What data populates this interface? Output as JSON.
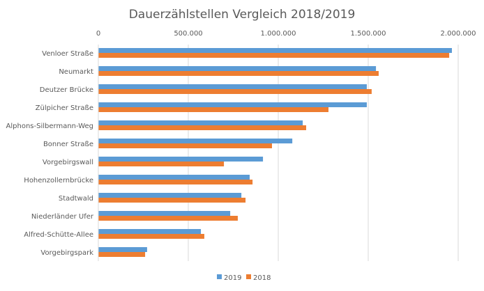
{
  "chart_data": {
    "type": "bar",
    "orientation": "horizontal",
    "title": "Dauerzählstellen Vergleich 2018/2019",
    "xlabel": "",
    "ylabel": "",
    "xlim": [
      0,
      2000000
    ],
    "ticks": [
      0,
      500000,
      1000000,
      1500000,
      2000000
    ],
    "tick_labels": [
      "0",
      "500.000",
      "1.000.000",
      "1.500.000",
      "2.000.000"
    ],
    "tick_position": "top",
    "grid": true,
    "legend_position": "bottom",
    "categories": [
      "Venloer Straße",
      "Neumarkt",
      "Deutzer Brücke",
      "Zülpicher Straße",
      "Alphons-Silbermann-Weg",
      "Bonner Straße",
      "Vorgebirgswall",
      "Hohenzollernbrücke",
      "Stadtwald",
      "Niederländer Ufer",
      "Alfred-Schütte-Allee",
      "Vorgebirgspark"
    ],
    "series": [
      {
        "name": "2019",
        "color": "#5B9BD5",
        "values": [
          1965000,
          1543000,
          1492000,
          1492000,
          1136000,
          1078000,
          915000,
          841000,
          795000,
          733000,
          570000,
          271000
        ]
      },
      {
        "name": "2018",
        "color": "#ED7D31",
        "values": [
          1950000,
          1558000,
          1519000,
          1279000,
          1155000,
          965000,
          698000,
          857000,
          818000,
          775000,
          589000,
          260000
        ]
      }
    ]
  }
}
